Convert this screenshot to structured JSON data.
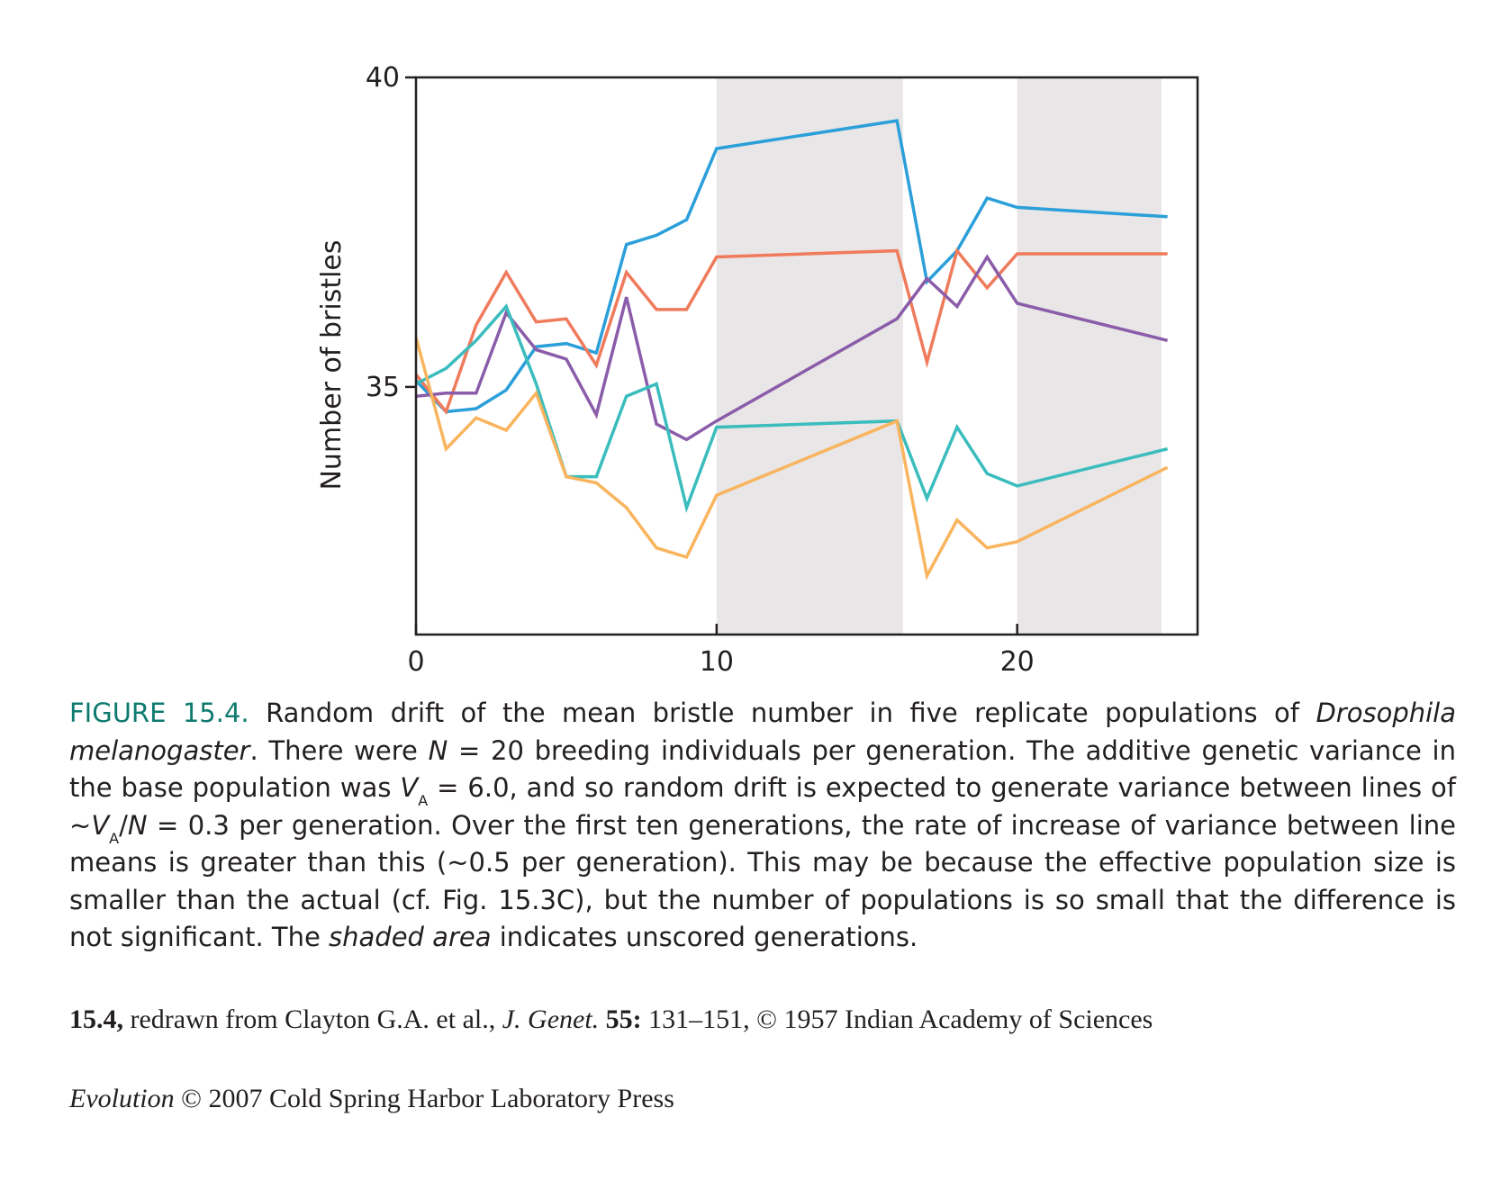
{
  "chart_data": {
    "type": "line",
    "ylabel": "Number of bristles",
    "xlabel": "",
    "xlim": [
      0,
      26
    ],
    "ylim": [
      31,
      40
    ],
    "xticks": [
      "0",
      "10",
      "20"
    ],
    "yticks": [
      "35",
      "40"
    ],
    "shaded_x_ranges": [
      [
        10,
        16.2
      ],
      [
        20,
        24.8
      ]
    ],
    "grid": false,
    "series": [
      {
        "color": "#2b9fd9",
        "x": [
          0,
          1,
          2,
          3,
          4,
          5,
          6,
          7,
          8,
          9,
          10,
          16,
          17,
          18,
          19,
          20,
          25
        ],
        "y": [
          35.1,
          34.6,
          34.65,
          34.95,
          35.65,
          35.7,
          35.55,
          37.3,
          37.45,
          37.7,
          38.85,
          39.3,
          36.7,
          37.2,
          38.05,
          37.9,
          37.75
        ]
      },
      {
        "color": "#ef7b5c",
        "x": [
          0,
          1,
          2,
          3,
          4,
          5,
          6,
          7,
          8,
          9,
          10,
          16,
          17,
          18,
          19,
          20,
          25
        ],
        "y": [
          35.2,
          34.6,
          36.0,
          36.85,
          36.05,
          36.1,
          35.35,
          36.85,
          36.25,
          36.25,
          37.1,
          37.2,
          35.4,
          37.2,
          36.6,
          37.15,
          37.15
        ]
      },
      {
        "color": "#8a5ca9",
        "x": [
          0,
          1,
          2,
          3,
          4,
          5,
          6,
          7,
          8,
          9,
          10,
          16,
          17,
          18,
          19,
          20,
          25
        ],
        "y": [
          34.85,
          34.9,
          34.9,
          36.2,
          35.6,
          35.45,
          34.55,
          36.45,
          34.4,
          34.15,
          34.45,
          36.1,
          36.75,
          36.3,
          37.1,
          36.35,
          35.75
        ]
      },
      {
        "color": "#3bbcbd",
        "x": [
          0,
          1,
          2,
          3,
          4,
          5,
          6,
          7,
          8,
          9,
          10,
          16,
          17,
          18,
          19,
          20,
          25
        ],
        "y": [
          35.05,
          35.3,
          35.75,
          36.3,
          35.05,
          33.55,
          33.55,
          34.85,
          35.05,
          33.05,
          34.35,
          34.45,
          33.2,
          34.35,
          33.6,
          33.4,
          34.0
        ]
      },
      {
        "color": "#f9b45e",
        "x": [
          0,
          1,
          2,
          3,
          4,
          5,
          6,
          7,
          8,
          9,
          10,
          16,
          17,
          18,
          19,
          20,
          25
        ],
        "y": [
          35.8,
          34.0,
          34.5,
          34.3,
          34.9,
          33.55,
          33.45,
          33.05,
          32.4,
          32.25,
          33.25,
          34.45,
          31.95,
          32.85,
          32.4,
          32.5,
          33.7
        ]
      }
    ],
    "shade_color": "#e9e6e7"
  },
  "caption": {
    "figure_label": "FIGURE 15.4.",
    "part1": " Random drift of the mean bristle number in five replicate populations of ",
    "species": "Drosophila melanogaster",
    "part2": ". There were ",
    "n_symbol": "N",
    "part3": " = 20 breeding individuals per generation. The additive genetic variance in the base population was ",
    "v_symbol": "V",
    "v_sub": "A",
    "part4": " = 6.0, and so random drift is expected to generate variance between lines of ~",
    "v_symbol_2": "V",
    "v_sub_2": "A",
    "part5": "/",
    "n_symbol_2": "N",
    "part6": " = 0.3 per generation. Over the first ten generations, the rate of increase of variance between line means is greater than this (~0.5 per generation). This may be because the effective population size is smaller than the actual (cf. Fig. 15.3C), but the number of populations is so small that the difference is not significant. The ",
    "shaded_term": "shaded area",
    "part7": " indicates unscored generations."
  },
  "credit": {
    "fig_ref": "15.4,",
    "part1": " redrawn from Clayton G.A. et al., ",
    "journal": "J. Genet.",
    "volume": " 55:",
    "part2": " 131–151, © 1957 Indian Academy of Sciences"
  },
  "book": {
    "title": "Evolution",
    "rest": " © 2007 Cold Spring Harbor Laboratory Press"
  }
}
